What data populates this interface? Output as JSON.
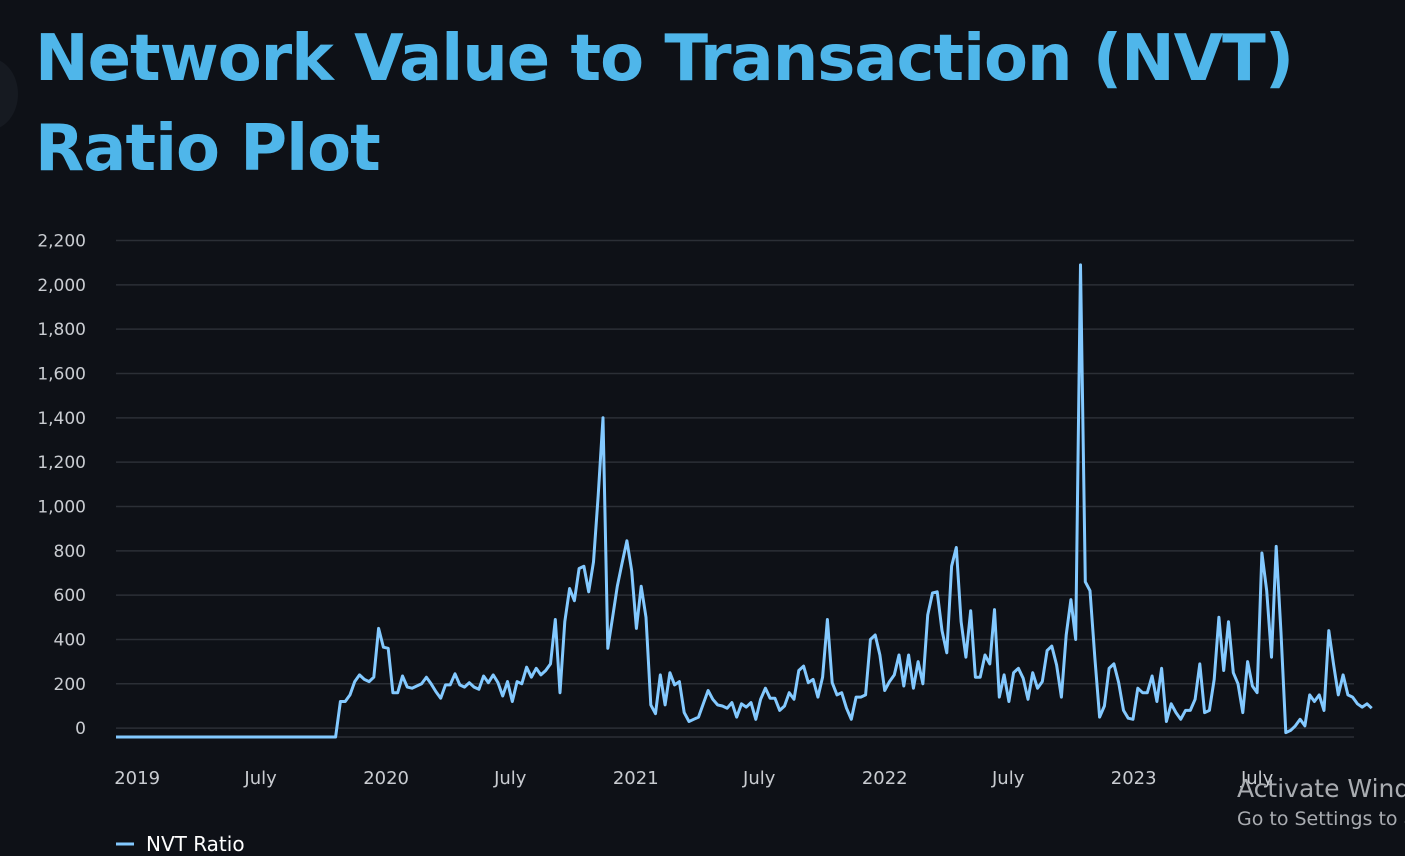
{
  "page": {
    "title": "Network Value to Transaction (NVT) Ratio Plot",
    "watermark_title": "Activate Windows",
    "watermark_subtitle": "Go to Settings to activate Windows."
  },
  "colors": {
    "background": "#0e1117",
    "title": "#4fb6ea",
    "line": "#83c9ff",
    "grid": "#2b2f36",
    "tick_text": "#c9ccd1"
  },
  "chart_data": {
    "type": "line",
    "title": "",
    "xlabel": "",
    "ylabel": "",
    "x_range": [
      "2018-12-01",
      "2023-11-20"
    ],
    "ylim": [
      -40,
      2200
    ],
    "y_ticks": [
      0,
      200,
      400,
      600,
      800,
      1000,
      1200,
      1400,
      1600,
      1800,
      2000,
      2200
    ],
    "y_tick_labels": [
      "0",
      "200",
      "400",
      "600",
      "800",
      "1,000",
      "1,200",
      "1,400",
      "1,600",
      "1,800",
      "2,000",
      "2,200"
    ],
    "x_ticks": [
      {
        "date": "2019-01-01",
        "label": "2019"
      },
      {
        "date": "2019-07-01",
        "label": "July"
      },
      {
        "date": "2020-01-01",
        "label": "2020"
      },
      {
        "date": "2020-07-01",
        "label": "July"
      },
      {
        "date": "2021-01-01",
        "label": "2021"
      },
      {
        "date": "2021-07-01",
        "label": "July"
      },
      {
        "date": "2022-01-01",
        "label": "2022"
      },
      {
        "date": "2022-07-01",
        "label": "July"
      },
      {
        "date": "2023-01-01",
        "label": "2023"
      },
      {
        "date": "2023-07-01",
        "label": "July"
      }
    ],
    "grid": true,
    "legend": "bottom-left",
    "series": [
      {
        "name": "NVT Ratio",
        "color": "#83c9ff",
        "points": [
          [
            "2018-12-01",
            -40
          ],
          [
            "2019-10-19",
            -40
          ],
          [
            "2019-10-26",
            120
          ],
          [
            "2019-11-02",
            120
          ],
          [
            "2019-11-09",
            150
          ],
          [
            "2019-11-16",
            210
          ],
          [
            "2019-11-23",
            240
          ],
          [
            "2019-11-30",
            220
          ],
          [
            "2019-12-07",
            210
          ],
          [
            "2019-12-14",
            230
          ],
          [
            "2019-12-21",
            450
          ],
          [
            "2019-12-28",
            365
          ],
          [
            "2020-01-04",
            360
          ],
          [
            "2020-01-11",
            160
          ],
          [
            "2020-01-18",
            160
          ],
          [
            "2020-01-25",
            235
          ],
          [
            "2020-02-01",
            185
          ],
          [
            "2020-02-08",
            180
          ],
          [
            "2020-02-15",
            190
          ],
          [
            "2020-02-22",
            200
          ],
          [
            "2020-02-29",
            230
          ],
          [
            "2020-03-07",
            200
          ],
          [
            "2020-03-14",
            165
          ],
          [
            "2020-03-21",
            135
          ],
          [
            "2020-03-28",
            195
          ],
          [
            "2020-04-04",
            195
          ],
          [
            "2020-04-11",
            245
          ],
          [
            "2020-04-18",
            195
          ],
          [
            "2020-04-25",
            185
          ],
          [
            "2020-05-02",
            205
          ],
          [
            "2020-05-09",
            185
          ],
          [
            "2020-05-16",
            175
          ],
          [
            "2020-05-23",
            235
          ],
          [
            "2020-05-30",
            205
          ],
          [
            "2020-06-06",
            240
          ],
          [
            "2020-06-13",
            205
          ],
          [
            "2020-06-20",
            145
          ],
          [
            "2020-06-27",
            210
          ],
          [
            "2020-07-04",
            120
          ],
          [
            "2020-07-11",
            210
          ],
          [
            "2020-07-18",
            200
          ],
          [
            "2020-07-25",
            275
          ],
          [
            "2020-08-01",
            230
          ],
          [
            "2020-08-08",
            270
          ],
          [
            "2020-08-15",
            240
          ],
          [
            "2020-08-22",
            260
          ],
          [
            "2020-08-29",
            290
          ],
          [
            "2020-09-05",
            490
          ],
          [
            "2020-09-12",
            160
          ],
          [
            "2020-09-19",
            480
          ],
          [
            "2020-09-26",
            630
          ],
          [
            "2020-10-03",
            575
          ],
          [
            "2020-10-10",
            720
          ],
          [
            "2020-10-17",
            730
          ],
          [
            "2020-10-24",
            615
          ],
          [
            "2020-10-31",
            750
          ],
          [
            "2020-11-07",
            1050
          ],
          [
            "2020-11-14",
            1400
          ],
          [
            "2020-11-21",
            360
          ],
          [
            "2020-11-28",
            500
          ],
          [
            "2020-12-05",
            640
          ],
          [
            "2020-12-12",
            745
          ],
          [
            "2020-12-19",
            845
          ],
          [
            "2020-12-26",
            710
          ],
          [
            "2021-01-02",
            450
          ],
          [
            "2021-01-09",
            640
          ],
          [
            "2021-01-16",
            500
          ],
          [
            "2021-01-23",
            105
          ],
          [
            "2021-01-30",
            65
          ],
          [
            "2021-02-06",
            240
          ],
          [
            "2021-02-13",
            105
          ],
          [
            "2021-02-20",
            250
          ],
          [
            "2021-02-27",
            195
          ],
          [
            "2021-03-06",
            210
          ],
          [
            "2021-03-13",
            70
          ],
          [
            "2021-03-20",
            30
          ],
          [
            "2021-03-27",
            40
          ],
          [
            "2021-04-03",
            50
          ],
          [
            "2021-04-10",
            110
          ],
          [
            "2021-04-17",
            170
          ],
          [
            "2021-04-24",
            130
          ],
          [
            "2021-05-01",
            105
          ],
          [
            "2021-05-08",
            100
          ],
          [
            "2021-05-15",
            90
          ],
          [
            "2021-05-22",
            115
          ],
          [
            "2021-05-29",
            50
          ],
          [
            "2021-06-05",
            110
          ],
          [
            "2021-06-12",
            95
          ],
          [
            "2021-06-19",
            115
          ],
          [
            "2021-06-26",
            40
          ],
          [
            "2021-07-03",
            130
          ],
          [
            "2021-07-10",
            180
          ],
          [
            "2021-07-17",
            135
          ],
          [
            "2021-07-24",
            135
          ],
          [
            "2021-07-31",
            80
          ],
          [
            "2021-08-07",
            100
          ],
          [
            "2021-08-14",
            160
          ],
          [
            "2021-08-21",
            130
          ],
          [
            "2021-08-28",
            260
          ],
          [
            "2021-09-04",
            280
          ],
          [
            "2021-09-11",
            205
          ],
          [
            "2021-09-18",
            220
          ],
          [
            "2021-09-25",
            140
          ],
          [
            "2021-10-02",
            230
          ],
          [
            "2021-10-09",
            490
          ],
          [
            "2021-10-16",
            205
          ],
          [
            "2021-10-23",
            150
          ],
          [
            "2021-10-30",
            160
          ],
          [
            "2021-11-06",
            90
          ],
          [
            "2021-11-13",
            40
          ],
          [
            "2021-11-20",
            140
          ],
          [
            "2021-11-27",
            140
          ],
          [
            "2021-12-04",
            150
          ],
          [
            "2021-12-11",
            400
          ],
          [
            "2021-12-18",
            420
          ],
          [
            "2021-12-25",
            330
          ],
          [
            "2022-01-01",
            170
          ],
          [
            "2022-01-08",
            210
          ],
          [
            "2022-01-15",
            240
          ],
          [
            "2022-01-22",
            330
          ],
          [
            "2022-01-29",
            190
          ],
          [
            "2022-02-05",
            330
          ],
          [
            "2022-02-12",
            180
          ],
          [
            "2022-02-19",
            300
          ],
          [
            "2022-02-26",
            200
          ],
          [
            "2022-03-05",
            510
          ],
          [
            "2022-03-12",
            610
          ],
          [
            "2022-03-19",
            615
          ],
          [
            "2022-03-26",
            440
          ],
          [
            "2022-04-02",
            340
          ],
          [
            "2022-04-09",
            730
          ],
          [
            "2022-04-16",
            815
          ],
          [
            "2022-04-23",
            480
          ],
          [
            "2022-04-30",
            320
          ],
          [
            "2022-05-07",
            530
          ],
          [
            "2022-05-14",
            230
          ],
          [
            "2022-05-21",
            230
          ],
          [
            "2022-05-28",
            330
          ],
          [
            "2022-06-04",
            290
          ],
          [
            "2022-06-11",
            535
          ],
          [
            "2022-06-18",
            140
          ],
          [
            "2022-06-25",
            240
          ],
          [
            "2022-07-02",
            120
          ],
          [
            "2022-07-09",
            250
          ],
          [
            "2022-07-16",
            270
          ],
          [
            "2022-07-23",
            225
          ],
          [
            "2022-07-30",
            130
          ],
          [
            "2022-08-06",
            250
          ],
          [
            "2022-08-13",
            180
          ],
          [
            "2022-08-20",
            210
          ],
          [
            "2022-08-27",
            350
          ],
          [
            "2022-09-03",
            370
          ],
          [
            "2022-09-10",
            285
          ],
          [
            "2022-09-17",
            140
          ],
          [
            "2022-09-24",
            420
          ],
          [
            "2022-10-01",
            580
          ],
          [
            "2022-10-08",
            400
          ],
          [
            "2022-10-15",
            2090
          ],
          [
            "2022-10-22",
            660
          ],
          [
            "2022-10-29",
            620
          ],
          [
            "2022-11-05",
            320
          ],
          [
            "2022-11-12",
            50
          ],
          [
            "2022-11-19",
            100
          ],
          [
            "2022-11-26",
            270
          ],
          [
            "2022-12-03",
            290
          ],
          [
            "2022-12-10",
            205
          ],
          [
            "2022-12-17",
            80
          ],
          [
            "2022-12-24",
            45
          ],
          [
            "2022-12-31",
            40
          ],
          [
            "2023-01-07",
            180
          ],
          [
            "2023-01-14",
            160
          ],
          [
            "2023-01-21",
            160
          ],
          [
            "2023-01-28",
            235
          ],
          [
            "2023-02-04",
            120
          ],
          [
            "2023-02-11",
            270
          ],
          [
            "2023-02-18",
            30
          ],
          [
            "2023-02-25",
            110
          ],
          [
            "2023-03-04",
            70
          ],
          [
            "2023-03-11",
            40
          ],
          [
            "2023-03-18",
            80
          ],
          [
            "2023-03-25",
            80
          ],
          [
            "2023-04-01",
            130
          ],
          [
            "2023-04-08",
            290
          ],
          [
            "2023-04-15",
            70
          ],
          [
            "2023-04-22",
            80
          ],
          [
            "2023-04-29",
            220
          ],
          [
            "2023-05-06",
            500
          ],
          [
            "2023-05-13",
            260
          ],
          [
            "2023-05-20",
            480
          ],
          [
            "2023-05-27",
            250
          ],
          [
            "2023-06-03",
            200
          ],
          [
            "2023-06-10",
            70
          ],
          [
            "2023-06-17",
            300
          ],
          [
            "2023-06-24",
            190
          ],
          [
            "2023-07-01",
            160
          ],
          [
            "2023-07-08",
            790
          ],
          [
            "2023-07-15",
            620
          ],
          [
            "2023-07-22",
            320
          ],
          [
            "2023-07-29",
            820
          ],
          [
            "2023-08-05",
            430
          ],
          [
            "2023-08-12",
            -20
          ],
          [
            "2023-08-19",
            -10
          ],
          [
            "2023-08-26",
            10
          ],
          [
            "2023-09-02",
            40
          ],
          [
            "2023-09-09",
            10
          ],
          [
            "2023-09-16",
            150
          ],
          [
            "2023-09-23",
            120
          ],
          [
            "2023-09-30",
            150
          ],
          [
            "2023-10-07",
            80
          ],
          [
            "2023-10-14",
            440
          ],
          [
            "2023-10-21",
            290
          ],
          [
            "2023-10-28",
            150
          ],
          [
            "2023-11-04",
            240
          ],
          [
            "2023-11-11",
            150
          ],
          [
            "2023-11-18",
            140
          ],
          [
            "2023-11-25",
            110
          ],
          [
            "2023-12-02",
            95
          ],
          [
            "2023-12-09",
            110
          ],
          [
            "2023-12-16",
            90
          ]
        ]
      }
    ]
  }
}
